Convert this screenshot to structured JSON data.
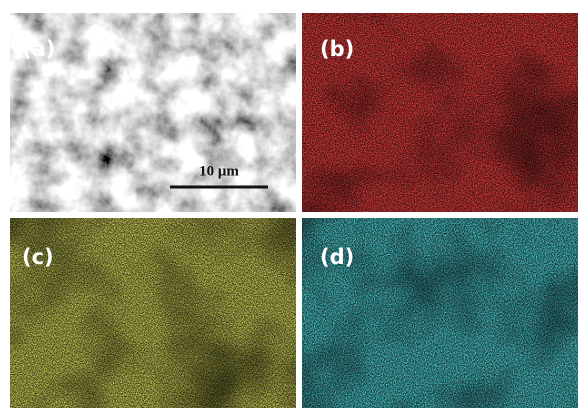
{
  "panels": [
    {
      "label": "(a)"
    },
    {
      "label": "(b)"
    },
    {
      "label": "(c)"
    },
    {
      "label": "(d)"
    }
  ],
  "scale_bar": "10 μm"
}
